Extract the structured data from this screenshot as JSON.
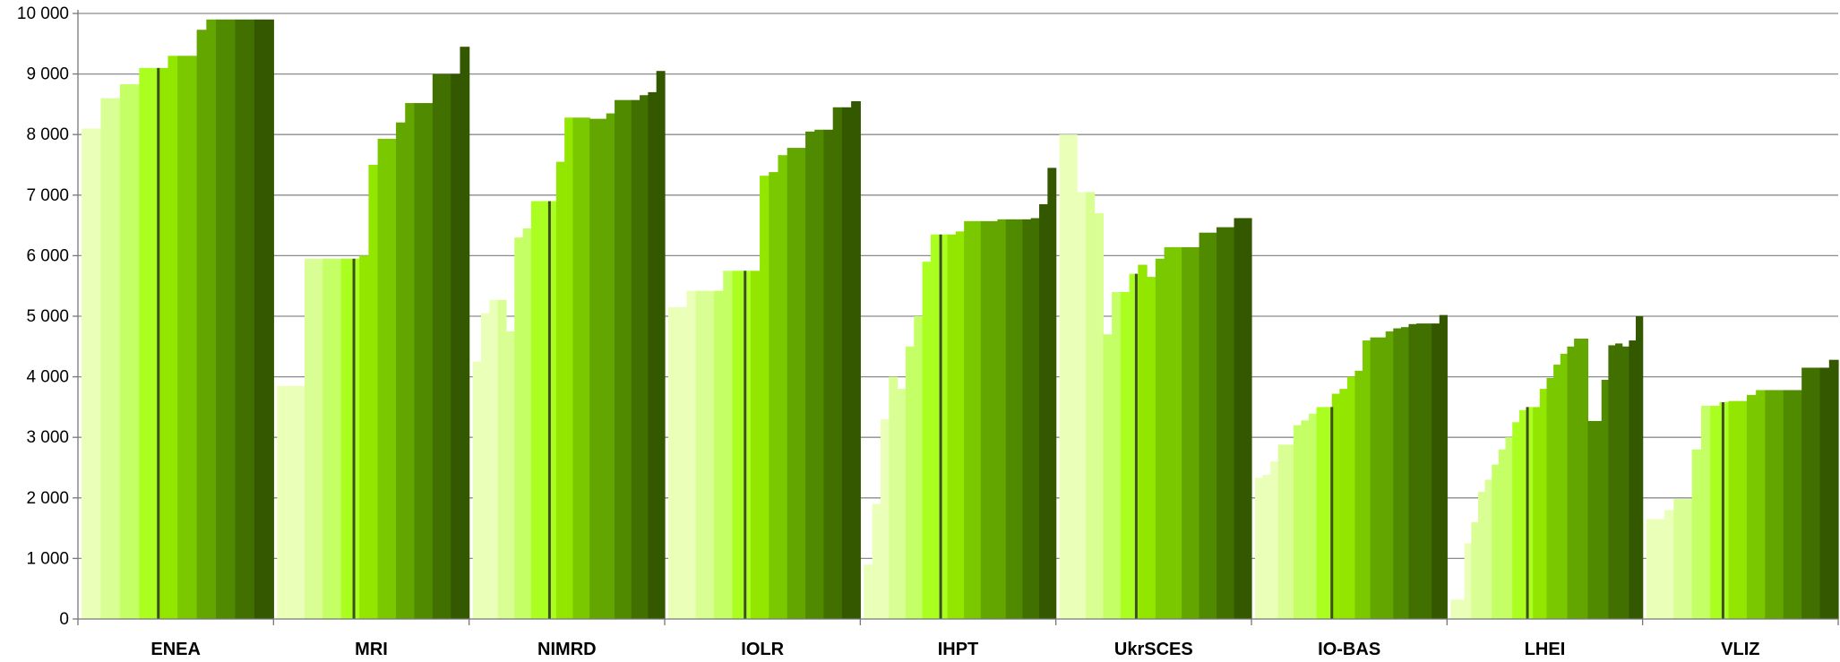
{
  "chart_data": {
    "type": "bar",
    "title": "",
    "xlabel": "",
    "ylabel": "",
    "ylim": [
      0,
      10000
    ],
    "yticks": [
      0,
      1000,
      2000,
      3000,
      4000,
      5000,
      6000,
      7000,
      8000,
      9000,
      10000
    ],
    "ytick_labels": [
      "0",
      "1 000",
      "2 000",
      "3 000",
      "4 000",
      "5 000",
      "6 000",
      "7 000",
      "8 000",
      "9 000",
      "10 000"
    ],
    "grid": true,
    "legend": "none",
    "color_ramp": [
      "#eaffb8",
      "#d9ff94",
      "#c4ff66",
      "#aaff20",
      "#93e600",
      "#7ac800",
      "#63a600",
      "#4f8a00",
      "#416f00",
      "#335800"
    ],
    "median_line_color": "#3c5020",
    "categories": [
      "ENEA",
      "MRI",
      "NIMRD",
      "IOLR",
      "IHPT",
      "UkrSCES",
      "IO-BAS",
      "LHEI",
      "VLIZ"
    ],
    "groups": [
      {
        "name": "ENEA",
        "median": 9100,
        "values": [
          8100,
          8100,
          8600,
          8600,
          8830,
          8830,
          9100,
          9100,
          9100,
          9300,
          9300,
          9300,
          9730,
          9900,
          9900,
          9900,
          9900,
          9900,
          9900,
          9900
        ]
      },
      {
        "name": "MRI",
        "median": 5950,
        "values": [
          3850,
          3850,
          3850,
          5950,
          5950,
          5950,
          5950,
          5950,
          5950,
          6000,
          7500,
          7930,
          7930,
          8200,
          8520,
          8520,
          8520,
          9000,
          9000,
          9000,
          9450
        ]
      },
      {
        "name": "NIMRD",
        "median": 6900,
        "values": [
          4250,
          5050,
          5270,
          5270,
          4750,
          6300,
          6450,
          6900,
          6900,
          6900,
          7550,
          8280,
          8280,
          8280,
          8260,
          8260,
          8350,
          8570,
          8570,
          8570,
          8650,
          8700,
          9050
        ]
      },
      {
        "name": "IOLR",
        "median": 5750,
        "values": [
          5150,
          5150,
          5420,
          5420,
          5420,
          5420,
          5750,
          5750,
          5750,
          5750,
          7320,
          7380,
          7660,
          7780,
          7780,
          8050,
          8080,
          8080,
          8450,
          8450,
          8550
        ]
      },
      {
        "name": "IHPT",
        "median": 6350,
        "values": [
          900,
          1900,
          3300,
          4000,
          3800,
          4500,
          5000,
          5900,
          6350,
          6350,
          6350,
          6400,
          6570,
          6570,
          6570,
          6570,
          6600,
          6600,
          6600,
          6600,
          6620,
          6850,
          7450
        ]
      },
      {
        "name": "UkrSCES",
        "median": 5700,
        "values": [
          8000,
          8000,
          7050,
          7050,
          6700,
          4700,
          5400,
          5400,
          5700,
          5850,
          5650,
          5950,
          6140,
          6140,
          6140,
          6140,
          6380,
          6380,
          6470,
          6470,
          6620,
          6620
        ]
      },
      {
        "name": "IO-BAS",
        "median": 3500,
        "values": [
          2330,
          2380,
          2600,
          2880,
          2880,
          3200,
          3280,
          3390,
          3500,
          3500,
          3720,
          3800,
          4000,
          4100,
          4600,
          4650,
          4650,
          4750,
          4800,
          4820,
          4870,
          4880,
          4880,
          4880,
          5020
        ]
      },
      {
        "name": "LHEI",
        "median": 3500,
        "values": [
          320,
          320,
          1250,
          1600,
          2100,
          2300,
          2550,
          2800,
          3000,
          3250,
          3450,
          3500,
          3500,
          3800,
          3980,
          4200,
          4380,
          4500,
          4630,
          4630,
          3270,
          3270,
          3950,
          4520,
          4550,
          4500,
          4600,
          5000
        ]
      },
      {
        "name": "VLIZ",
        "median": 3580,
        "values": [
          1650,
          1650,
          1800,
          1980,
          1980,
          2800,
          3520,
          3520,
          3580,
          3600,
          3600,
          3700,
          3780,
          3780,
          3780,
          3780,
          3780,
          4150,
          4150,
          4150,
          4280
        ]
      }
    ]
  }
}
